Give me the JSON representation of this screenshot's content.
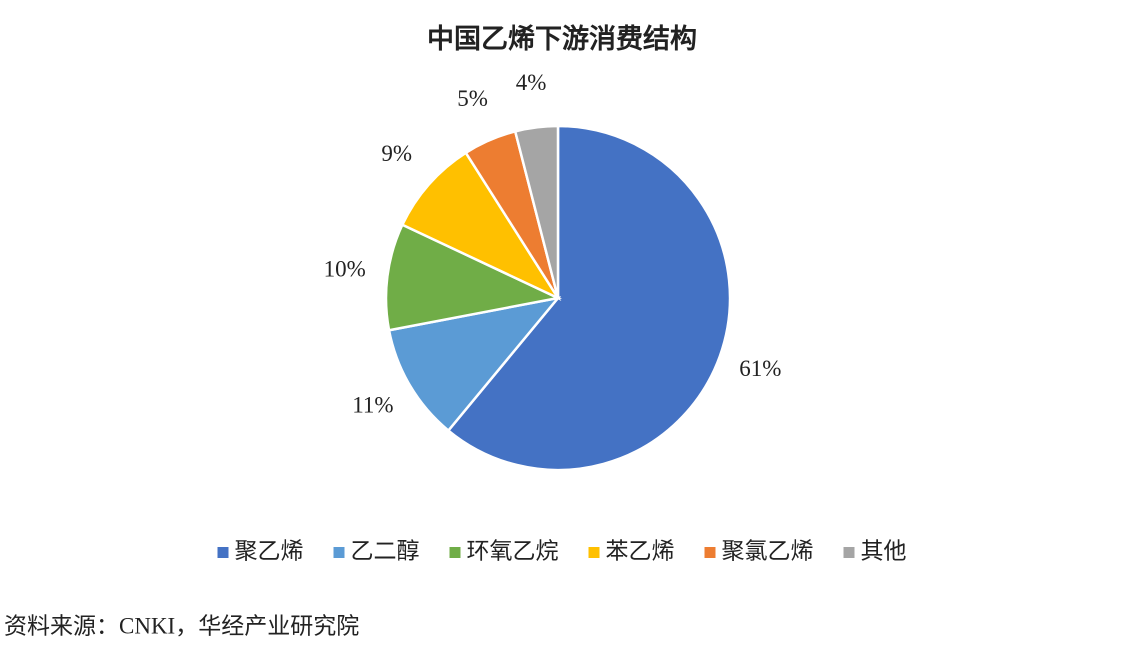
{
  "chart_data": {
    "type": "pie",
    "title": "中国乙烯下游消费结构",
    "categories": [
      "聚乙烯",
      "乙二醇",
      "环氧乙烷",
      "苯乙烯",
      "聚氯乙烯",
      "其他"
    ],
    "values": [
      61,
      11,
      10,
      9,
      5,
      4
    ],
    "value_labels": [
      "61%",
      "11%",
      "10%",
      "9%",
      "5%",
      "4%"
    ],
    "colors": [
      "#4472c4",
      "#5b9bd5",
      "#70ad47",
      "#ffc000",
      "#ed7d31",
      "#a5a5a5"
    ],
    "legend": "bottom",
    "source": "资料来源：CNKI，华经产业研究院"
  }
}
